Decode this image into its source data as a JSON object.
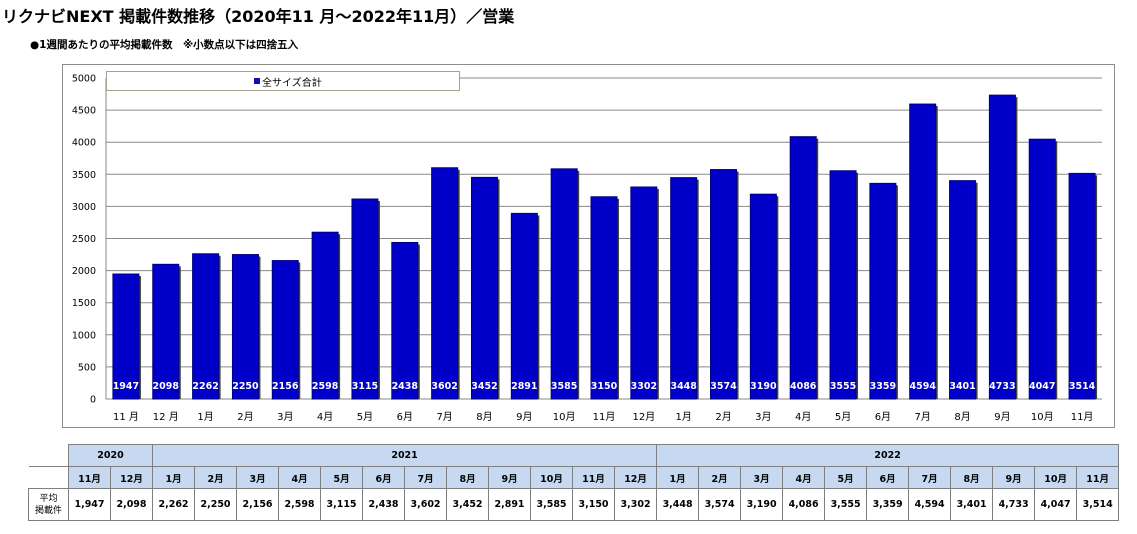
{
  "title": "リクナビNEXT 掲載件数推移（2020年11 月～2022年11月）／営業",
  "subtitle": "●1週間あたりの平均掲載件数　※小数点以下は四捨五入",
  "colors": {
    "bar": "#0000c8",
    "bar_dark": "#000080",
    "header_fill": "#c6d9f1"
  },
  "chart_data": {
    "type": "bar",
    "categories": [
      "11 月",
      "12 月",
      "1月",
      "2月",
      "3月",
      "4月",
      "5月",
      "6月",
      "7月",
      "8月",
      "9月",
      "10月",
      "11月",
      "12月",
      "1月",
      "2月",
      "3月",
      "4月",
      "5月",
      "6月",
      "7月",
      "8月",
      "9月",
      "10月",
      "11月"
    ],
    "series": [
      {
        "name": "全サイズ合計",
        "values": [
          1947,
          2098,
          2262,
          2250,
          2156,
          2598,
          3115,
          2438,
          3602,
          3452,
          2891,
          3585,
          3150,
          3302,
          3448,
          3574,
          3190,
          4086,
          3555,
          3359,
          4594,
          3401,
          4733,
          4047,
          3514
        ]
      }
    ],
    "yticks": [
      0,
      500,
      1000,
      1500,
      2000,
      2500,
      3000,
      3500,
      4000,
      4500,
      5000
    ],
    "ylim": [
      0,
      5000
    ],
    "grid": true,
    "legend": "top-left"
  },
  "table": {
    "years": [
      {
        "label": "2020",
        "span": 2
      },
      {
        "label": "2021",
        "span": 12
      },
      {
        "label": "2022",
        "span": 11
      }
    ],
    "months": [
      "11月",
      "12月",
      "1月",
      "2月",
      "3月",
      "4月",
      "5月",
      "6月",
      "7月",
      "8月",
      "9月",
      "10月",
      "11月",
      "12月",
      "1月",
      "2月",
      "3月",
      "4月",
      "5月",
      "6月",
      "7月",
      "8月",
      "9月",
      "10月",
      "11月"
    ],
    "row_label": [
      "平均",
      "掲載件"
    ],
    "values": [
      "1,947",
      "2,098",
      "2,262",
      "2,250",
      "2,156",
      "2,598",
      "3,115",
      "2,438",
      "3,602",
      "3,452",
      "2,891",
      "3,585",
      "3,150",
      "3,302",
      "3,448",
      "3,574",
      "3,190",
      "4,086",
      "3,555",
      "3,359",
      "4,594",
      "3,401",
      "4,733",
      "4,047",
      "3,514"
    ]
  }
}
